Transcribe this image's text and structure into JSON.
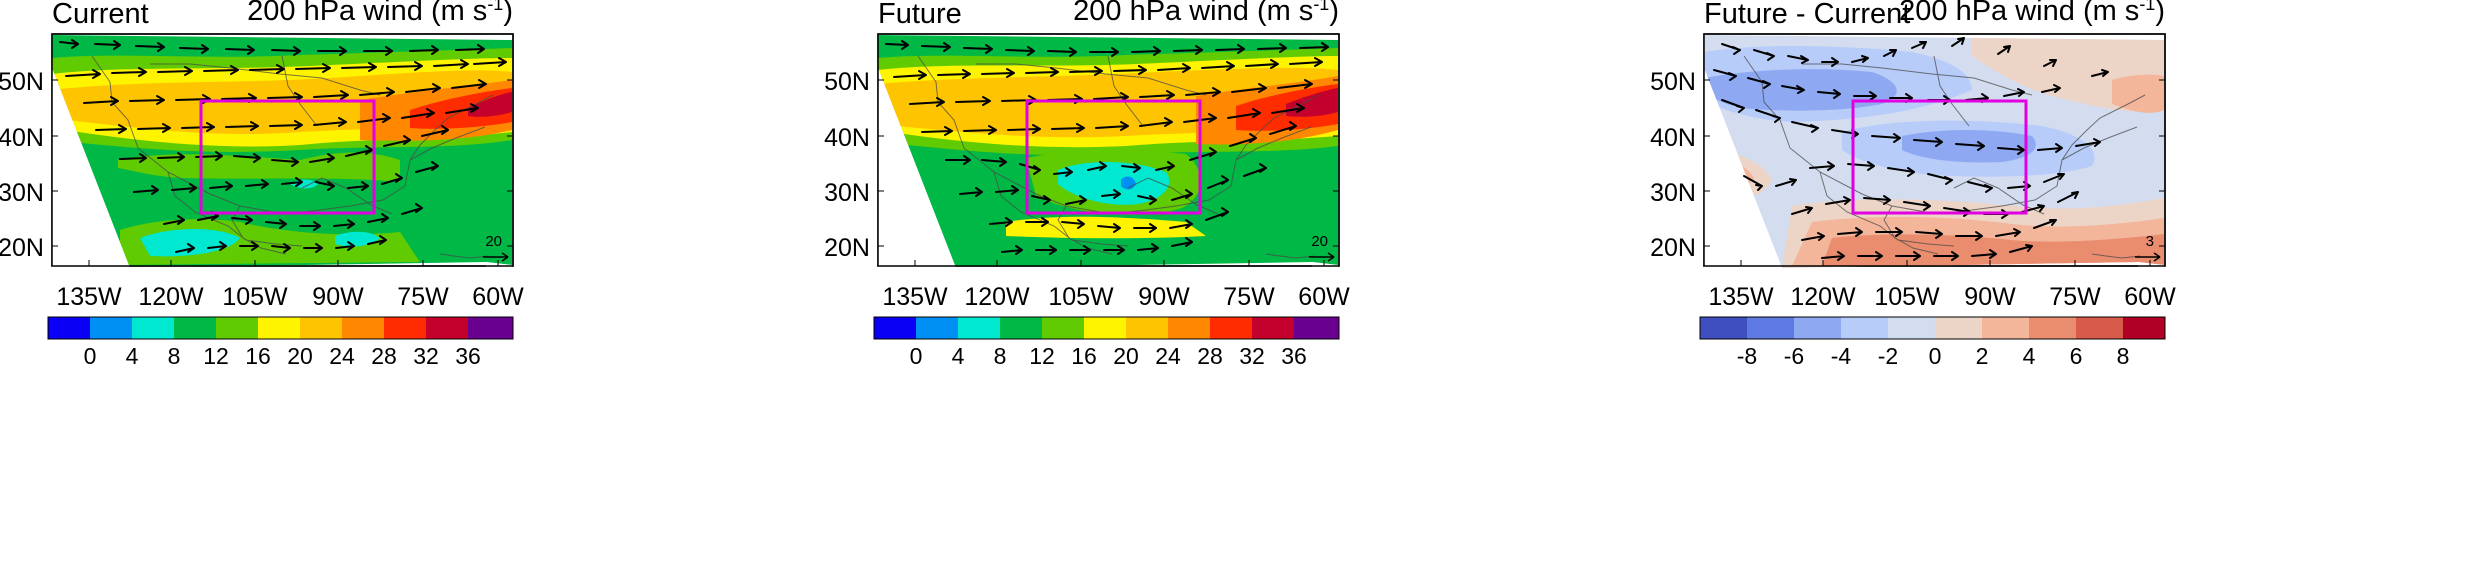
{
  "common": {
    "right_title": "200 hPa wind (m s",
    "units_superscript": "-1",
    "right_title_close": ")",
    "lon_labels": [
      "135W",
      "120W",
      "105W",
      "90W",
      "75W",
      "60W"
    ],
    "lat_labels": [
      "50N",
      "40N",
      "30N",
      "20N"
    ]
  },
  "panels": [
    {
      "title": "Current",
      "reference_vector_label": "20",
      "colorbar_labels": [
        "0",
        "4",
        "8",
        "12",
        "16",
        "20",
        "24",
        "28",
        "32",
        "36"
      ],
      "colorbar_colors": [
        "#0a00f5",
        "#008ff2",
        "#00e8d0",
        "#00b845",
        "#5fcb00",
        "#fff400",
        "#ffc400",
        "#ff8800",
        "#ff2c00",
        "#c4002d",
        "#6a008f"
      ]
    },
    {
      "title": "Future",
      "reference_vector_label": "20",
      "colorbar_labels": [
        "0",
        "4",
        "8",
        "12",
        "16",
        "20",
        "24",
        "28",
        "32",
        "36"
      ],
      "colorbar_colors": [
        "#0a00f5",
        "#008ff2",
        "#00e8d0",
        "#00b845",
        "#5fcb00",
        "#fff400",
        "#ffc400",
        "#ff8800",
        "#ff2c00",
        "#c4002d",
        "#6a008f"
      ]
    },
    {
      "title": "Future - Current",
      "reference_vector_label": "3",
      "colorbar_labels": [
        "-8",
        "-6",
        "-4",
        "-2",
        "0",
        "2",
        "4",
        "6",
        "8"
      ],
      "colorbar_colors": [
        "#3f4fbf",
        "#5d7ae2",
        "#8ea9f2",
        "#b7ccf8",
        "#d3ddef",
        "#ecd4c7",
        "#f3b69b",
        "#ea8d6f",
        "#d85a4a",
        "#b10026"
      ]
    }
  ]
}
